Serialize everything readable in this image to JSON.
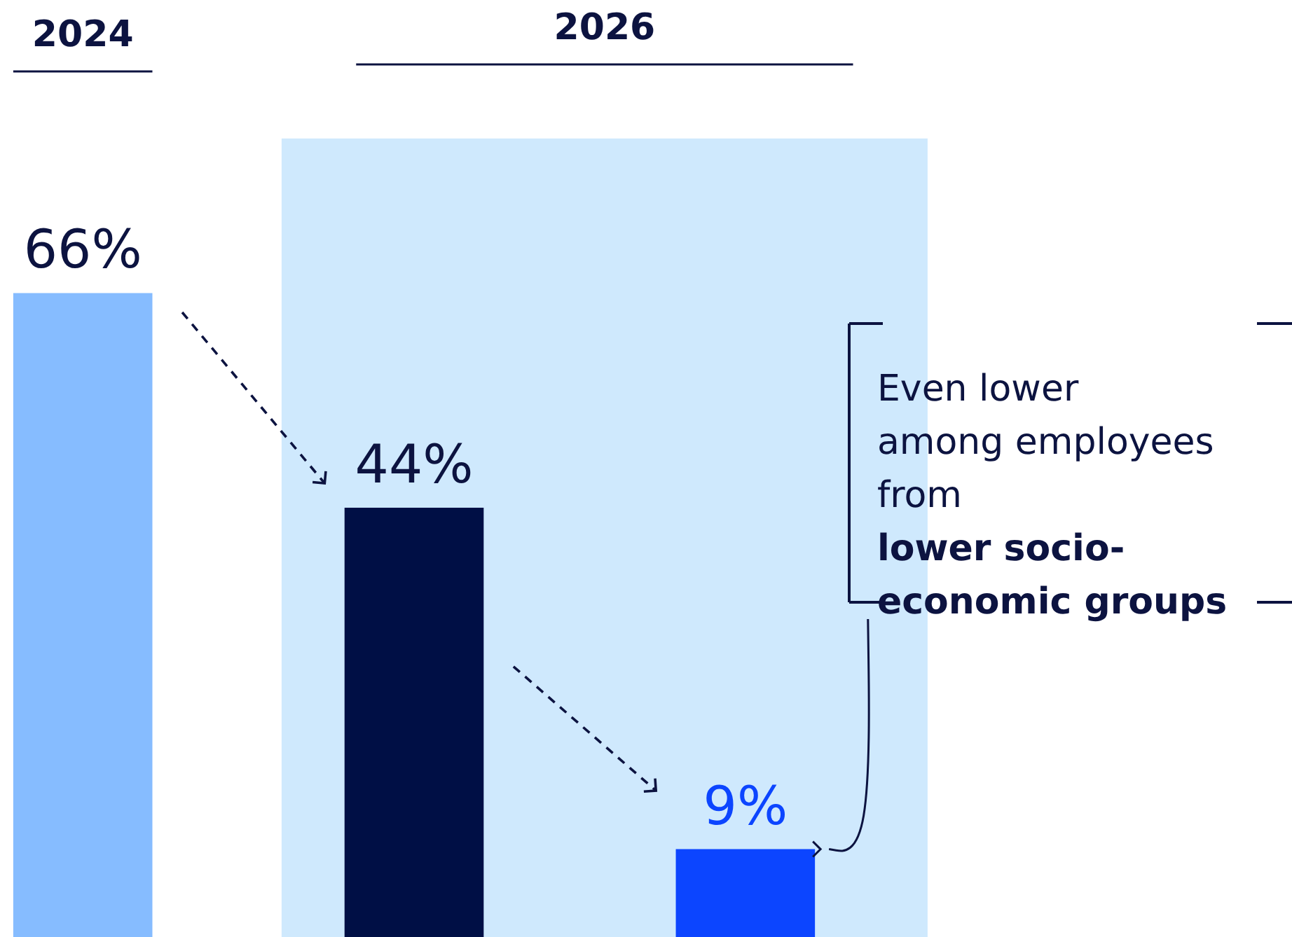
{
  "chart_data": {
    "type": "bar",
    "categories": [
      null,
      null,
      null
    ],
    "values": [
      66,
      44,
      9
    ],
    "colors": [
      "#86bcff",
      "#000f45",
      "#0c45ff"
    ],
    "value_labels": [
      "66%",
      "44%",
      "9%"
    ],
    "annotations": [
      "2024",
      "2026",
      "Even lower among employees from",
      "lower socio-economic groups"
    ]
  }
}
